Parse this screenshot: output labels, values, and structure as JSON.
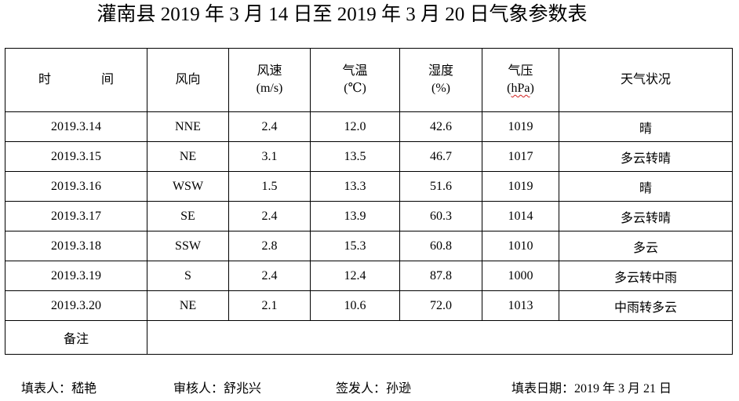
{
  "title": "灌南县 2019 年 3 月 14 日至 2019 年 3 月 20 日气象参数表",
  "headers": {
    "time": "时　间",
    "wind_dir": "风向",
    "wind_speed": "风速",
    "wind_speed_unit": "(m/s)",
    "temp": "气温",
    "temp_unit": "(℃)",
    "humidity": "湿度",
    "humidity_unit": "(%)",
    "pressure": "气压",
    "pressure_unit_open": "(",
    "pressure_unit": "hPa",
    "pressure_unit_close": ")",
    "weather": "天气状况"
  },
  "rows": [
    {
      "date": "2019.3.14",
      "wind_dir": "NNE",
      "wind_speed": "2.4",
      "temp": "12.0",
      "humidity": "42.6",
      "pressure": "1019",
      "weather": "晴"
    },
    {
      "date": "2019.3.15",
      "wind_dir": "NE",
      "wind_speed": "3.1",
      "temp": "13.5",
      "humidity": "46.7",
      "pressure": "1017",
      "weather": "多云转晴"
    },
    {
      "date": "2019.3.16",
      "wind_dir": "WSW",
      "wind_speed": "1.5",
      "temp": "13.3",
      "humidity": "51.6",
      "pressure": "1019",
      "weather": "晴"
    },
    {
      "date": "2019.3.17",
      "wind_dir": "SE",
      "wind_speed": "2.4",
      "temp": "13.9",
      "humidity": "60.3",
      "pressure": "1014",
      "weather": "多云转晴"
    },
    {
      "date": "2019.3.18",
      "wind_dir": "SSW",
      "wind_speed": "2.8",
      "temp": "15.3",
      "humidity": "60.8",
      "pressure": "1010",
      "weather": "多云"
    },
    {
      "date": "2019.3.19",
      "wind_dir": "S",
      "wind_speed": "2.4",
      "temp": "12.4",
      "humidity": "87.8",
      "pressure": "1000",
      "weather": "多云转中雨"
    },
    {
      "date": "2019.3.20",
      "wind_dir": "NE",
      "wind_speed": "2.1",
      "temp": "10.6",
      "humidity": "72.0",
      "pressure": "1013",
      "weather": "中雨转多云"
    }
  ],
  "remarks_label": "备注",
  "remarks_value": "",
  "footer": {
    "filler": "填表人：嵇艳",
    "reviewer": "审核人：舒兆兴",
    "issuer": "签发人：孙逊",
    "date": "填表日期：2019 年 3 月 21 日"
  }
}
